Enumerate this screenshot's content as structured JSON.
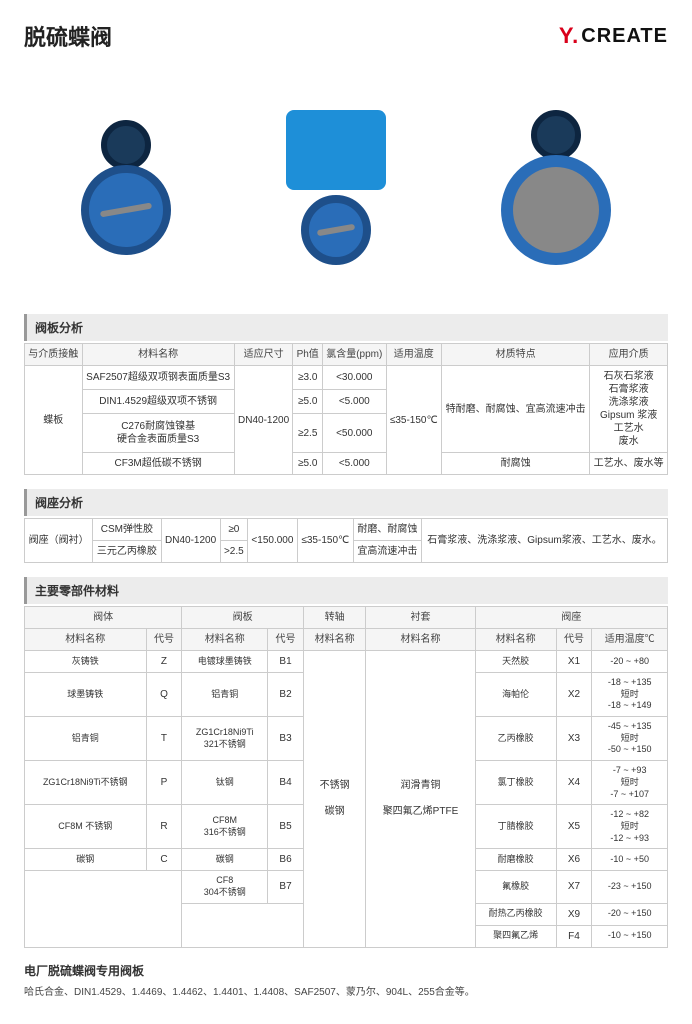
{
  "header": {
    "title": "脱硫蝶阀",
    "logo_prefix": "Y.",
    "logo_text": "CREATE"
  },
  "section1": {
    "title": "阀板分析",
    "headers": [
      "与介质接触",
      "材料名称",
      "适应尺寸",
      "Ph值",
      "氯含量(ppm)",
      "适用温度",
      "材质特点",
      "应用介质"
    ],
    "disc_label": "蝶板",
    "size": "DN40-1200",
    "temp": "≤35-150℃",
    "feature1": "特耐磨、耐腐蚀、宜高流速冲击",
    "feature2": "耐腐蚀",
    "media1": "石灰石浆液\n石膏浆液\n洗涤浆液\nGipsum 浆液\n工艺水\n废水",
    "media2": "工艺水、废水等",
    "rows": [
      {
        "m": "SAF2507超级双项钢表面质量S3",
        "ph": "≥3.0",
        "cl": "<30.000"
      },
      {
        "m": "DIN1.4529超级双项不锈钢",
        "ph": "≥5.0",
        "cl": "<5.000"
      },
      {
        "m": "C276耐腐蚀镍基\n硬合金表面质量S3",
        "ph": "≥2.5",
        "cl": "<50.000"
      },
      {
        "m": "CF3M超低碳不锈钢",
        "ph": "≥5.0",
        "cl": "<5.000"
      }
    ]
  },
  "section2": {
    "title": "阀座分析",
    "seat_label": "阀座（阀衬）",
    "m1": "CSM弹性胶",
    "m2": "三元乙丙橡胶",
    "size": "DN40-1200",
    "ph1": "≥0",
    "ph2": ">2.5",
    "cl": "<150.000",
    "temp": "≤35-150℃",
    "f1": "耐磨、耐腐蚀",
    "f2": "宜高流速冲击",
    "media": "石膏浆液、洗涤浆液、Gipsum浆液、工艺水、废水。"
  },
  "section3": {
    "title": "主要零部件材料",
    "group_headers": [
      "阀体",
      "阀板",
      "转轴",
      "衬套",
      "阀座"
    ],
    "col_headers": {
      "name": "材料名称",
      "code": "代号",
      "temp": "适用温度℃"
    },
    "body": [
      {
        "n": "灰铸铁",
        "c": "Z"
      },
      {
        "n": "球墨铸铁",
        "c": "Q"
      },
      {
        "n": "铝青铜",
        "c": "T"
      },
      {
        "n": "ZG1Cr18Ni9Ti不锈钢",
        "c": "P"
      },
      {
        "n": "CF8M 不锈钢",
        "c": "R"
      },
      {
        "n": "碳钢",
        "c": "C"
      }
    ],
    "disc": [
      {
        "n": "电镀球墨铸铁",
        "c": "B1"
      },
      {
        "n": "铝青铜",
        "c": "B2"
      },
      {
        "n": "ZG1Cr18Ni9Ti\n321不锈钢",
        "c": "B3"
      },
      {
        "n": "钛钢",
        "c": "B4"
      },
      {
        "n": "CF8M\n316不锈钢",
        "c": "B5"
      },
      {
        "n": "碳钢",
        "c": "B6"
      },
      {
        "n": "CF8\n304不锈钢",
        "c": "B7"
      }
    ],
    "shaft": "不锈钢\n\n碳钢",
    "sleeve": "润滑青铜\n\n聚四氟乙烯PTFE",
    "seat": [
      {
        "n": "天然胶",
        "c": "X1",
        "t": "-20 ~ +80"
      },
      {
        "n": "海帕伦",
        "c": "X2",
        "t": "-18 ~ +135\n短时\n-18 ~ +149"
      },
      {
        "n": "乙丙橡胶",
        "c": "X3",
        "t": "-45 ~ +135\n短时\n-50 ~ +150"
      },
      {
        "n": "氯丁橡胶",
        "c": "X4",
        "t": "-7 ~ +93\n短时\n-7 ~ +107"
      },
      {
        "n": "丁腈橡胶",
        "c": "X5",
        "t": "-12 ~ +82\n短时\n-12 ~ +93"
      },
      {
        "n": "耐磨橡胶",
        "c": "X6",
        "t": "-10 ~ +50"
      },
      {
        "n": "氟橡胶",
        "c": "X7",
        "t": "-23 ~ +150"
      },
      {
        "n": "耐热乙丙橡胶",
        "c": "X9",
        "t": "-20 ~ +150"
      },
      {
        "n": "聚四氟乙烯",
        "c": "F4",
        "t": "-10 ~ +150"
      }
    ]
  },
  "footer": {
    "title": "电厂脱硫蝶阀专用阀板",
    "text": "哈氏合金、DIN1.4529、1.4469、1.4462、1.4401、1.4408、SAF2507、蒙乃尔、904L、255合金等。"
  }
}
